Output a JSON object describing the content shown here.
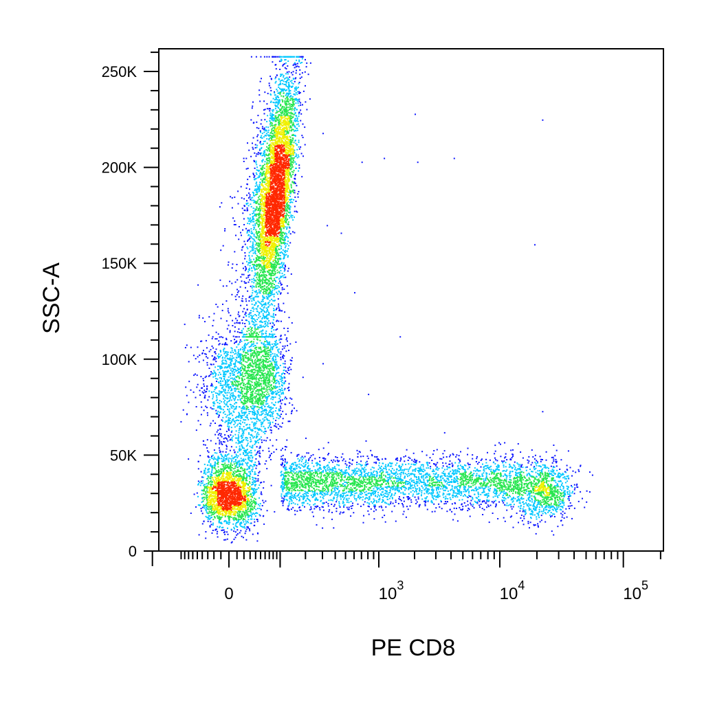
{
  "chart_data": {
    "type": "scatter",
    "title": "",
    "xlabel": "PE CD8",
    "ylabel": "SSC-A",
    "x_scale": "biexponential",
    "xlim": [
      -200,
      200000
    ],
    "ylim": [
      0,
      262144
    ],
    "x_ticks": [
      {
        "value": 0,
        "label": "0"
      },
      {
        "value": 1000,
        "base": "10",
        "exp": "3"
      },
      {
        "value": 10000,
        "base": "10",
        "exp": "4"
      },
      {
        "value": 100000,
        "base": "10",
        "exp": "5"
      }
    ],
    "y_ticks": [
      {
        "value": 0,
        "label": "0"
      },
      {
        "value": 50000,
        "label": "50K"
      },
      {
        "value": 100000,
        "label": "100K"
      },
      {
        "value": 150000,
        "label": "150K"
      },
      {
        "value": 200000,
        "label": "200K"
      },
      {
        "value": 250000,
        "label": "250K"
      }
    ],
    "grid": false,
    "legend": "none",
    "colormap": "density (blue → cyan → green → yellow → red)",
    "colors": [
      "#0a14ff",
      "#00c8ff",
      "#28e650",
      "#f0f000",
      "#ff2800"
    ],
    "populations": [
      {
        "name_visible": false,
        "description": "CD8-negative low SSC",
        "x_center": 0,
        "x_spread": 20,
        "y_center": 30000,
        "y_spread": 9000,
        "n_events": 2200
      },
      {
        "name_visible": false,
        "description": "CD8-negative high SSC (granulocytes)",
        "x_range": [
          50,
          120
        ],
        "y_range": [
          120000,
          255000
        ],
        "peak_y": 185000,
        "n_events": 5200
      },
      {
        "name_visible": false,
        "description": "CD8-negative intermediate SSC",
        "x_center": 40,
        "x_spread": 40,
        "y_center": 92000,
        "y_spread": 16000,
        "n_events": 1800
      },
      {
        "name_visible": false,
        "description": "CD8 intermediate smear",
        "x_range": [
          100,
          15000
        ],
        "y_center": 36000,
        "y_spread": 7000,
        "n_events": 3200
      },
      {
        "name_visible": false,
        "description": "CD8-positive",
        "x_center": 22000,
        "x_spread_log10": 0.13,
        "y_center": 32000,
        "y_spread": 7500,
        "n_events": 1000
      }
    ],
    "outliers": [
      [
        220,
        236000
      ],
      [
        300,
        218000
      ],
      [
        700,
        203000
      ],
      [
        1100,
        205000
      ],
      [
        2000,
        228000
      ],
      [
        2100,
        203000
      ],
      [
        4200,
        205000
      ],
      [
        22000,
        225000
      ],
      [
        19000,
        160000
      ],
      [
        600,
        135000
      ],
      [
        330,
        170000
      ],
      [
        450,
        166000
      ],
      [
        22000,
        73000
      ],
      [
        800,
        82000
      ],
      [
        2200,
        42000
      ],
      [
        18000,
        53000
      ],
      [
        10000,
        56000
      ],
      [
        300,
        98000
      ],
      [
        1500,
        112000
      ],
      [
        3500,
        62000
      ]
    ]
  }
}
